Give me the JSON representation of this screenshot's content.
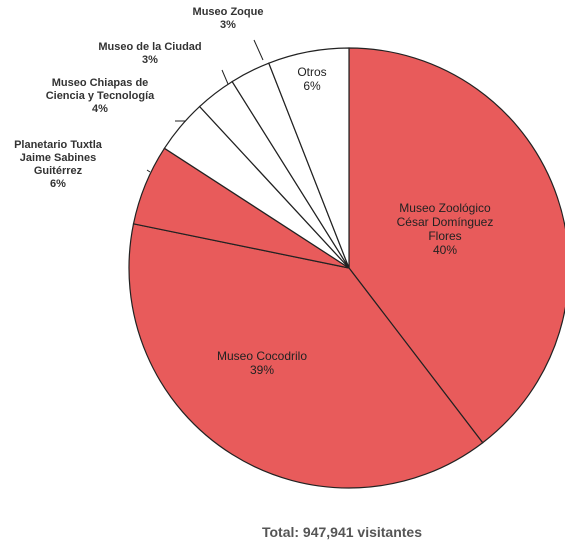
{
  "chart_data": {
    "type": "pie",
    "categories": [
      "Museo Zoológico César Domínguez Flores",
      "Museo Cocodrilo",
      "Planetario Tuxtla Jaime Sabines Guitérrez",
      "Museo Chiapas de Ciencia y Tecnología",
      "Museo de la Ciudad",
      "Museo Zoque",
      "Otros"
    ],
    "values": [
      40,
      39,
      6,
      4,
      3,
      3,
      6
    ],
    "labels": [
      "40%",
      "39%",
      "6%",
      "4%",
      "3%",
      "3%",
      "6%"
    ],
    "colors": {
      "filled": "#e85b5b",
      "empty": "#ffffff",
      "stroke": "#222222"
    },
    "slices": [
      {
        "name": "Museo Zoológico César Domínguez Flores",
        "lines": [
          "Museo Zoológico",
          "César Domínguez",
          "Flores"
        ],
        "pct": "40%",
        "filled": true
      },
      {
        "name": "Museo Cocodrilo",
        "lines": [
          "Museo Cocodrilo"
        ],
        "pct": "39%",
        "filled": true
      },
      {
        "name": "Planetario Tuxtla Jaime Sabines Guitérrez",
        "lines": [
          "Planetario Tuxtla",
          "Jaime Sabines",
          "Guitérrez"
        ],
        "pct": "6%",
        "filled": true
      },
      {
        "name": "Museo Chiapas de Ciencia y Tecnología",
        "lines": [
          "Museo Chiapas de",
          "Ciencia y Tecnología"
        ],
        "pct": "4%",
        "filled": false
      },
      {
        "name": "Museo de la Ciudad",
        "lines": [
          "Museo de la Ciudad"
        ],
        "pct": "3%",
        "filled": false
      },
      {
        "name": "Museo Zoque",
        "lines": [
          "Museo Zoque"
        ],
        "pct": "3%",
        "filled": false
      },
      {
        "name": "Otros",
        "lines": [
          "Otros"
        ],
        "pct": "6%",
        "filled": false
      }
    ],
    "total_label": "Total: 947,941 visitantes"
  }
}
